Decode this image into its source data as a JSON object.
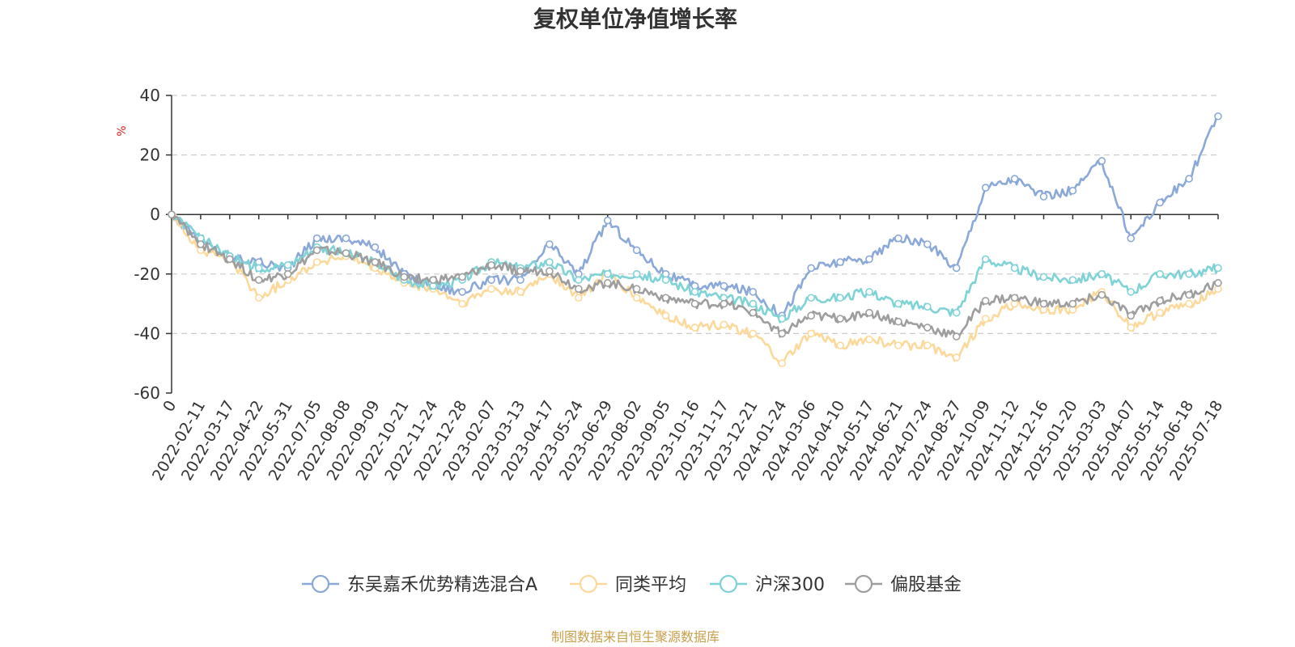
{
  "chart_data": {
    "type": "line",
    "title": "复权单位净值增长率",
    "ylabel": "%",
    "ylim": [
      -60,
      40
    ],
    "yticks": [
      -60,
      -40,
      -20,
      0,
      20,
      40
    ],
    "grid": true,
    "legend": "bottom",
    "x": [
      "0",
      "2022-02-11",
      "2022-03-17",
      "2022-04-22",
      "2022-05-31",
      "2022-07-05",
      "2022-08-08",
      "2022-09-09",
      "2022-10-21",
      "2022-11-24",
      "2022-12-28",
      "2023-02-07",
      "2023-03-13",
      "2023-04-17",
      "2023-05-24",
      "2023-06-29",
      "2023-08-02",
      "2023-09-05",
      "2023-10-16",
      "2023-11-17",
      "2023-12-21",
      "2024-01-24",
      "2024-03-06",
      "2024-04-10",
      "2024-05-17",
      "2024-06-21",
      "2024-07-24",
      "2024-08-27",
      "2024-10-09",
      "2024-11-12",
      "2024-12-16",
      "2025-01-20",
      "2025-03-03",
      "2025-04-07",
      "2025-05-14",
      "2025-06-18",
      "2025-07-18"
    ],
    "series": [
      {
        "name": "东吴嘉禾优势精选混合A",
        "color": "#8aa8d8",
        "values": [
          0,
          -9,
          -14,
          -16,
          -18,
          -8,
          -8,
          -11,
          -20,
          -24,
          -26,
          -22,
          -22,
          -10,
          -20,
          -2,
          -12,
          -20,
          -24,
          -24,
          -26,
          -34,
          -18,
          -16,
          -15,
          -8,
          -10,
          -18,
          9,
          12,
          6,
          8,
          18,
          -8,
          4,
          12,
          33
        ]
      },
      {
        "name": "同类平均",
        "color": "#fcd99a",
        "values": [
          0,
          -12,
          -15,
          -28,
          -22,
          -16,
          -14,
          -18,
          -23,
          -25,
          -30,
          -25,
          -26,
          -20,
          -28,
          -20,
          -28,
          -34,
          -38,
          -37,
          -40,
          -50,
          -40,
          -44,
          -42,
          -44,
          -44,
          -48,
          -35,
          -30,
          -32,
          -32,
          -26,
          -38,
          -33,
          -30,
          -25
        ]
      },
      {
        "name": "沪深300",
        "color": "#7fd3d6",
        "values": [
          0,
          -8,
          -14,
          -18,
          -17,
          -11,
          -13,
          -16,
          -22,
          -24,
          -22,
          -16,
          -18,
          -16,
          -22,
          -20,
          -20,
          -22,
          -26,
          -28,
          -30,
          -35,
          -28,
          -28,
          -26,
          -30,
          -31,
          -33,
          -15,
          -18,
          -21,
          -22,
          -20,
          -26,
          -20,
          -20,
          -18
        ]
      },
      {
        "name": "偏股基金",
        "color": "#9e9e9e",
        "values": [
          0,
          -10,
          -15,
          -22,
          -20,
          -12,
          -13,
          -16,
          -21,
          -22,
          -21,
          -17,
          -19,
          -19,
          -25,
          -23,
          -25,
          -28,
          -30,
          -30,
          -33,
          -40,
          -34,
          -35,
          -33,
          -36,
          -38,
          -41,
          -29,
          -28,
          -30,
          -30,
          -27,
          -34,
          -29,
          -27,
          -23
        ]
      }
    ]
  },
  "source": {
    "text": "制图数据来自恒生聚源数据库",
    "color": "#c8a04a"
  },
  "colors": {
    "axis": "#333333",
    "grid": "#cccccc",
    "unit": "#e02020"
  }
}
